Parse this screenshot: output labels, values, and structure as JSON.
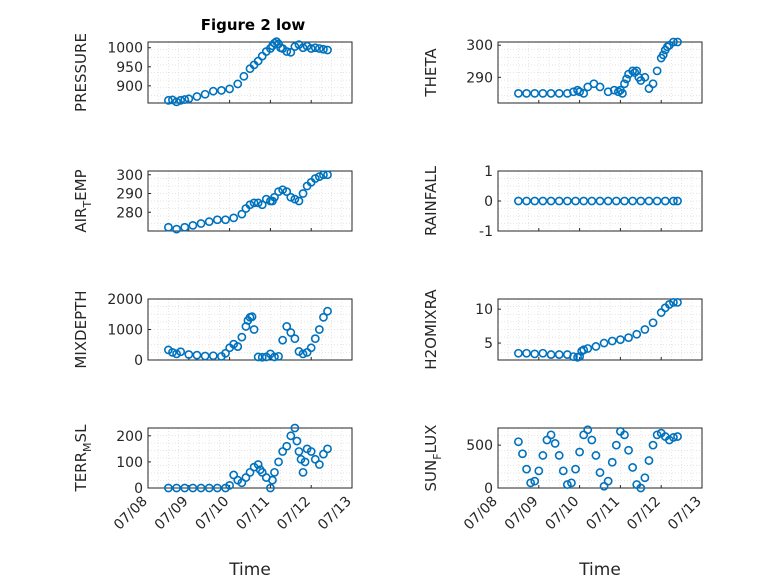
{
  "figure": {
    "title": "Figure 2 low",
    "colors": {
      "marker": "#0072BD",
      "axis": "#262626",
      "grid": "#dcdcdc",
      "background": "#ffffff"
    }
  },
  "chart_data": [
    {
      "type": "scatter",
      "title": "Figure 2 low",
      "ylabel": "PRESSURE",
      "xlabel": "",
      "ylim": [
        855,
        1015
      ],
      "yticks": [
        "1000",
        "950",
        "900"
      ],
      "ytick_values": [
        1000,
        950,
        900
      ],
      "series": [
        {
          "x": [
            8.5,
            8.6,
            8.7,
            8.8,
            8.9,
            9.0,
            9.2,
            9.4,
            9.6,
            9.8,
            10.0,
            10.2,
            10.35,
            10.5,
            10.6,
            10.7,
            10.8,
            10.9,
            11.0,
            11.05,
            11.1,
            11.15,
            11.2,
            11.25,
            11.3,
            11.4,
            11.5,
            11.6,
            11.7,
            11.8,
            11.9,
            12.0,
            12.1,
            12.2,
            12.3,
            12.4
          ],
          "y": [
            862,
            863,
            858,
            862,
            864,
            866,
            872,
            878,
            886,
            888,
            892,
            905,
            925,
            945,
            955,
            965,
            978,
            990,
            998,
            1005,
            1012,
            1016,
            1010,
            1000,
            998,
            990,
            988,
            1003,
            1008,
            1000,
            1004,
            998,
            1000,
            998,
            996,
            994
          ]
        }
      ]
    },
    {
      "type": "scatter",
      "ylabel": "THETA",
      "xlabel": "",
      "ylim": [
        282,
        301
      ],
      "yticks": [
        "300",
        "290"
      ],
      "ytick_values": [
        300,
        290
      ],
      "series": [
        {
          "x": [
            8.5,
            8.7,
            8.9,
            9.1,
            9.3,
            9.5,
            9.7,
            9.85,
            9.95,
            10.0,
            10.1,
            10.2,
            10.35,
            10.5,
            10.7,
            10.85,
            10.95,
            11.0,
            11.05,
            11.1,
            11.15,
            11.2,
            11.3,
            11.35,
            11.4,
            11.45,
            11.5,
            11.6,
            11.7,
            11.8,
            11.9,
            12.0,
            12.05,
            12.1,
            12.15,
            12.2,
            12.3,
            12.4
          ],
          "y": [
            285,
            285,
            285,
            285,
            285,
            285,
            285,
            285.5,
            286,
            285.5,
            285,
            287,
            288,
            287,
            285.5,
            286,
            285.5,
            286,
            285,
            288,
            289.5,
            291,
            292,
            291.5,
            292,
            290,
            289,
            290,
            286.5,
            288,
            292,
            296,
            297,
            298.5,
            299.5,
            300,
            301,
            301
          ]
        }
      ]
    },
    {
      "type": "scatter",
      "ylabel": "AIR_T EMP",
      "ylabel_main": "AIR",
      "ylabel_sub": "T",
      "ylabel_rest": "EMP",
      "xlabel": "",
      "ylim": [
        270,
        302
      ],
      "yticks": [
        "300",
        "290",
        "280"
      ],
      "ytick_values": [
        300,
        290,
        280
      ],
      "series": [
        {
          "x": [
            8.5,
            8.7,
            8.9,
            9.1,
            9.3,
            9.5,
            9.7,
            9.9,
            10.1,
            10.3,
            10.4,
            10.5,
            10.6,
            10.7,
            10.8,
            10.9,
            11.0,
            11.05,
            11.1,
            11.2,
            11.3,
            11.4,
            11.5,
            11.6,
            11.7,
            11.8,
            11.9,
            12.0,
            12.1,
            12.2,
            12.3,
            12.4
          ],
          "y": [
            272,
            271,
            272,
            273,
            274,
            275,
            276,
            276,
            277,
            279,
            282,
            284,
            285,
            285,
            284,
            287,
            286,
            286,
            288,
            291,
            292,
            291,
            288,
            287,
            286,
            290,
            294,
            296,
            298,
            299,
            300,
            300
          ]
        }
      ]
    },
    {
      "type": "scatter",
      "ylabel": "RAINFALL",
      "xlabel": "",
      "ylim": [
        -1,
        1
      ],
      "yticks": [
        "1",
        "0",
        "-1"
      ],
      "ytick_values": [
        1,
        0,
        -1
      ],
      "series": [
        {
          "x": [
            8.5,
            8.7,
            8.9,
            9.1,
            9.3,
            9.5,
            9.7,
            9.9,
            10.1,
            10.3,
            10.5,
            10.7,
            10.9,
            11.1,
            11.3,
            11.5,
            11.7,
            11.9,
            12.1,
            12.3,
            12.4
          ],
          "y": [
            0,
            0,
            0,
            0,
            0,
            0,
            0,
            0,
            0,
            0,
            0,
            0,
            0,
            0,
            0,
            0,
            0,
            0,
            0,
            0,
            0
          ]
        }
      ]
    },
    {
      "type": "scatter",
      "ylabel": "MIXDEPTH",
      "xlabel": "",
      "ylim": [
        0,
        2000
      ],
      "yticks": [
        "2000",
        "1000",
        "0"
      ],
      "ytick_values": [
        2000,
        1000,
        0
      ],
      "series": [
        {
          "x": [
            8.5,
            8.6,
            8.7,
            8.8,
            9.0,
            9.2,
            9.4,
            9.6,
            9.8,
            9.9,
            10.0,
            10.1,
            10.2,
            10.3,
            10.4,
            10.45,
            10.5,
            10.55,
            10.6,
            10.7,
            10.8,
            10.9,
            11.0,
            11.1,
            11.2,
            11.3,
            11.4,
            11.5,
            11.6,
            11.7,
            11.8,
            11.9,
            12.0,
            12.1,
            12.2,
            12.3,
            12.4
          ],
          "y": [
            330,
            250,
            200,
            270,
            180,
            160,
            130,
            140,
            120,
            220,
            400,
            520,
            440,
            750,
            1100,
            1300,
            1400,
            1420,
            1000,
            100,
            90,
            100,
            200,
            100,
            120,
            650,
            1100,
            900,
            700,
            280,
            200,
            250,
            400,
            700,
            1000,
            1400,
            1600
          ]
        }
      ]
    },
    {
      "type": "scatter",
      "ylabel": "H2OMIXRA",
      "xlabel": "",
      "ylim": [
        2.5,
        11.5
      ],
      "yticks": [
        "10",
        "5"
      ],
      "ytick_values": [
        10,
        5
      ],
      "series": [
        {
          "x": [
            8.5,
            8.7,
            8.9,
            9.1,
            9.3,
            9.5,
            9.7,
            9.85,
            9.95,
            10.0,
            10.05,
            10.1,
            10.2,
            10.4,
            10.6,
            10.8,
            11.0,
            11.2,
            11.4,
            11.6,
            11.8,
            12.0,
            12.1,
            12.2,
            12.3,
            12.4
          ],
          "y": [
            3.5,
            3.5,
            3.4,
            3.5,
            3.3,
            3.3,
            3.3,
            3.0,
            2.9,
            3.0,
            3.8,
            4.0,
            4.2,
            4.5,
            5.0,
            5.3,
            5.5,
            5.8,
            6.3,
            7.0,
            8.0,
            9.5,
            10.2,
            10.7,
            11.0,
            11.0
          ]
        }
      ]
    },
    {
      "type": "scatter",
      "ylabel": "TERR_M SL",
      "ylabel_main": "TERR",
      "ylabel_sub": "M",
      "ylabel_rest": "SL",
      "xlabel": "Time",
      "ylim": [
        0,
        230
      ],
      "yticks": [
        "200",
        "100",
        "0"
      ],
      "ytick_values": [
        200,
        100,
        0
      ],
      "xticks": [
        "07/08",
        "07/09",
        "07/10",
        "07/11",
        "07/12",
        "07/13"
      ],
      "xtick_values": [
        8,
        9,
        10,
        11,
        12,
        13
      ],
      "series": [
        {
          "x": [
            8.5,
            8.7,
            8.9,
            9.1,
            9.3,
            9.5,
            9.7,
            9.9,
            10.0,
            10.1,
            10.2,
            10.3,
            10.4,
            10.5,
            10.6,
            10.7,
            10.75,
            10.8,
            10.9,
            11.0,
            11.05,
            11.1,
            11.2,
            11.3,
            11.4,
            11.5,
            11.6,
            11.65,
            11.7,
            11.75,
            11.8,
            11.85,
            11.9,
            12.0,
            12.1,
            12.2,
            12.3,
            12.4
          ],
          "y": [
            0,
            0,
            0,
            0,
            0,
            0,
            0,
            0,
            10,
            50,
            30,
            20,
            40,
            60,
            80,
            90,
            70,
            60,
            40,
            0,
            30,
            60,
            100,
            140,
            160,
            200,
            230,
            180,
            140,
            110,
            60,
            100,
            150,
            140,
            110,
            90,
            130,
            150
          ]
        }
      ]
    },
    {
      "type": "scatter",
      "ylabel": "SUN_F LUX",
      "ylabel_main": "SUN",
      "ylabel_sub": "F",
      "ylabel_rest": "LUX",
      "xlabel": "Time",
      "ylim": [
        0,
        700
      ],
      "yticks": [
        "500",
        "0"
      ],
      "ytick_values": [
        500,
        0
      ],
      "xticks": [
        "07/08",
        "07/09",
        "07/10",
        "07/11",
        "07/12",
        "07/13"
      ],
      "xtick_values": [
        8,
        9,
        10,
        11,
        12,
        13
      ],
      "series": [
        {
          "x": [
            8.5,
            8.6,
            8.7,
            8.8,
            8.9,
            9.0,
            9.1,
            9.2,
            9.3,
            9.4,
            9.5,
            9.6,
            9.7,
            9.8,
            9.9,
            10.0,
            10.1,
            10.2,
            10.3,
            10.4,
            10.5,
            10.6,
            10.7,
            10.8,
            10.9,
            11.0,
            11.1,
            11.2,
            11.3,
            11.4,
            11.5,
            11.6,
            11.7,
            11.8,
            11.9,
            12.0,
            12.1,
            12.2,
            12.3,
            12.4
          ],
          "y": [
            540,
            400,
            220,
            60,
            80,
            200,
            380,
            560,
            620,
            520,
            380,
            200,
            40,
            60,
            220,
            420,
            620,
            680,
            560,
            380,
            180,
            20,
            80,
            300,
            500,
            660,
            620,
            440,
            240,
            40,
            0,
            120,
            320,
            500,
            620,
            640,
            600,
            560,
            590,
            600
          ]
        }
      ]
    }
  ]
}
